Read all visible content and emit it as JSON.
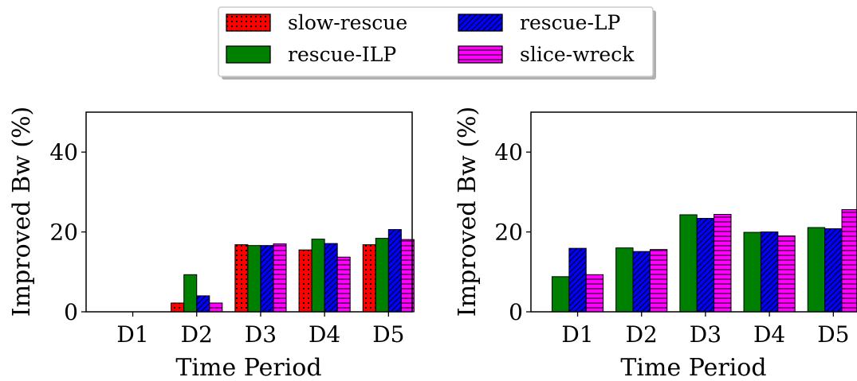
{
  "legend": {
    "placement": "top-center",
    "columns": 2,
    "items": [
      {
        "series": "slow-rescue",
        "label": "slow-rescue"
      },
      {
        "series": "rescue-LP",
        "label": "rescue-LP"
      },
      {
        "series": "rescue-ILP",
        "label": "rescue-ILP"
      },
      {
        "series": "slice-wreck",
        "label": "slice-wreck"
      }
    ]
  },
  "series_styles": {
    "slow-rescue": {
      "color": "#ff0000",
      "hatch": "dots"
    },
    "rescue-ILP": {
      "color": "#008000",
      "hatch": "none"
    },
    "rescue-LP": {
      "color": "#0000ff",
      "hatch": "diagonal"
    },
    "slice-wreck": {
      "color": "#ff00ff",
      "hatch": "horizontal"
    }
  },
  "chart_data": [
    {
      "type": "bar",
      "title": "",
      "xlabel": "Time Period",
      "ylabel": "Improved Bw (%)",
      "categories": [
        "D1",
        "D2",
        "D3",
        "D4",
        "D5"
      ],
      "ylim": [
        0,
        50
      ],
      "yticks": [
        0,
        20,
        40
      ],
      "grid": false,
      "series": [
        {
          "name": "slow-rescue",
          "values": [
            0,
            2.2,
            16.8,
            15.5,
            16.8
          ]
        },
        {
          "name": "rescue-ILP",
          "values": [
            0,
            9.3,
            16.6,
            18.2,
            18.4
          ]
        },
        {
          "name": "rescue-LP",
          "values": [
            0,
            4.0,
            16.6,
            17.1,
            20.6
          ]
        },
        {
          "name": "slice-wreck",
          "values": [
            0,
            2.2,
            17.0,
            13.7,
            18.1
          ]
        }
      ]
    },
    {
      "type": "bar",
      "title": "",
      "xlabel": "Time Period",
      "ylabel": "Improved Bw (%)",
      "categories": [
        "D1",
        "D2",
        "D3",
        "D4",
        "D5"
      ],
      "ylim": [
        0,
        50
      ],
      "yticks": [
        0,
        20,
        40
      ],
      "grid": false,
      "series": [
        {
          "name": "rescue-ILP",
          "values": [
            8.8,
            16.0,
            24.3,
            19.9,
            21.1
          ]
        },
        {
          "name": "rescue-LP",
          "values": [
            15.9,
            15.1,
            23.4,
            20.0,
            20.8
          ]
        },
        {
          "name": "slice-wreck",
          "values": [
            9.3,
            15.6,
            24.4,
            19.0,
            25.6
          ]
        }
      ]
    }
  ]
}
